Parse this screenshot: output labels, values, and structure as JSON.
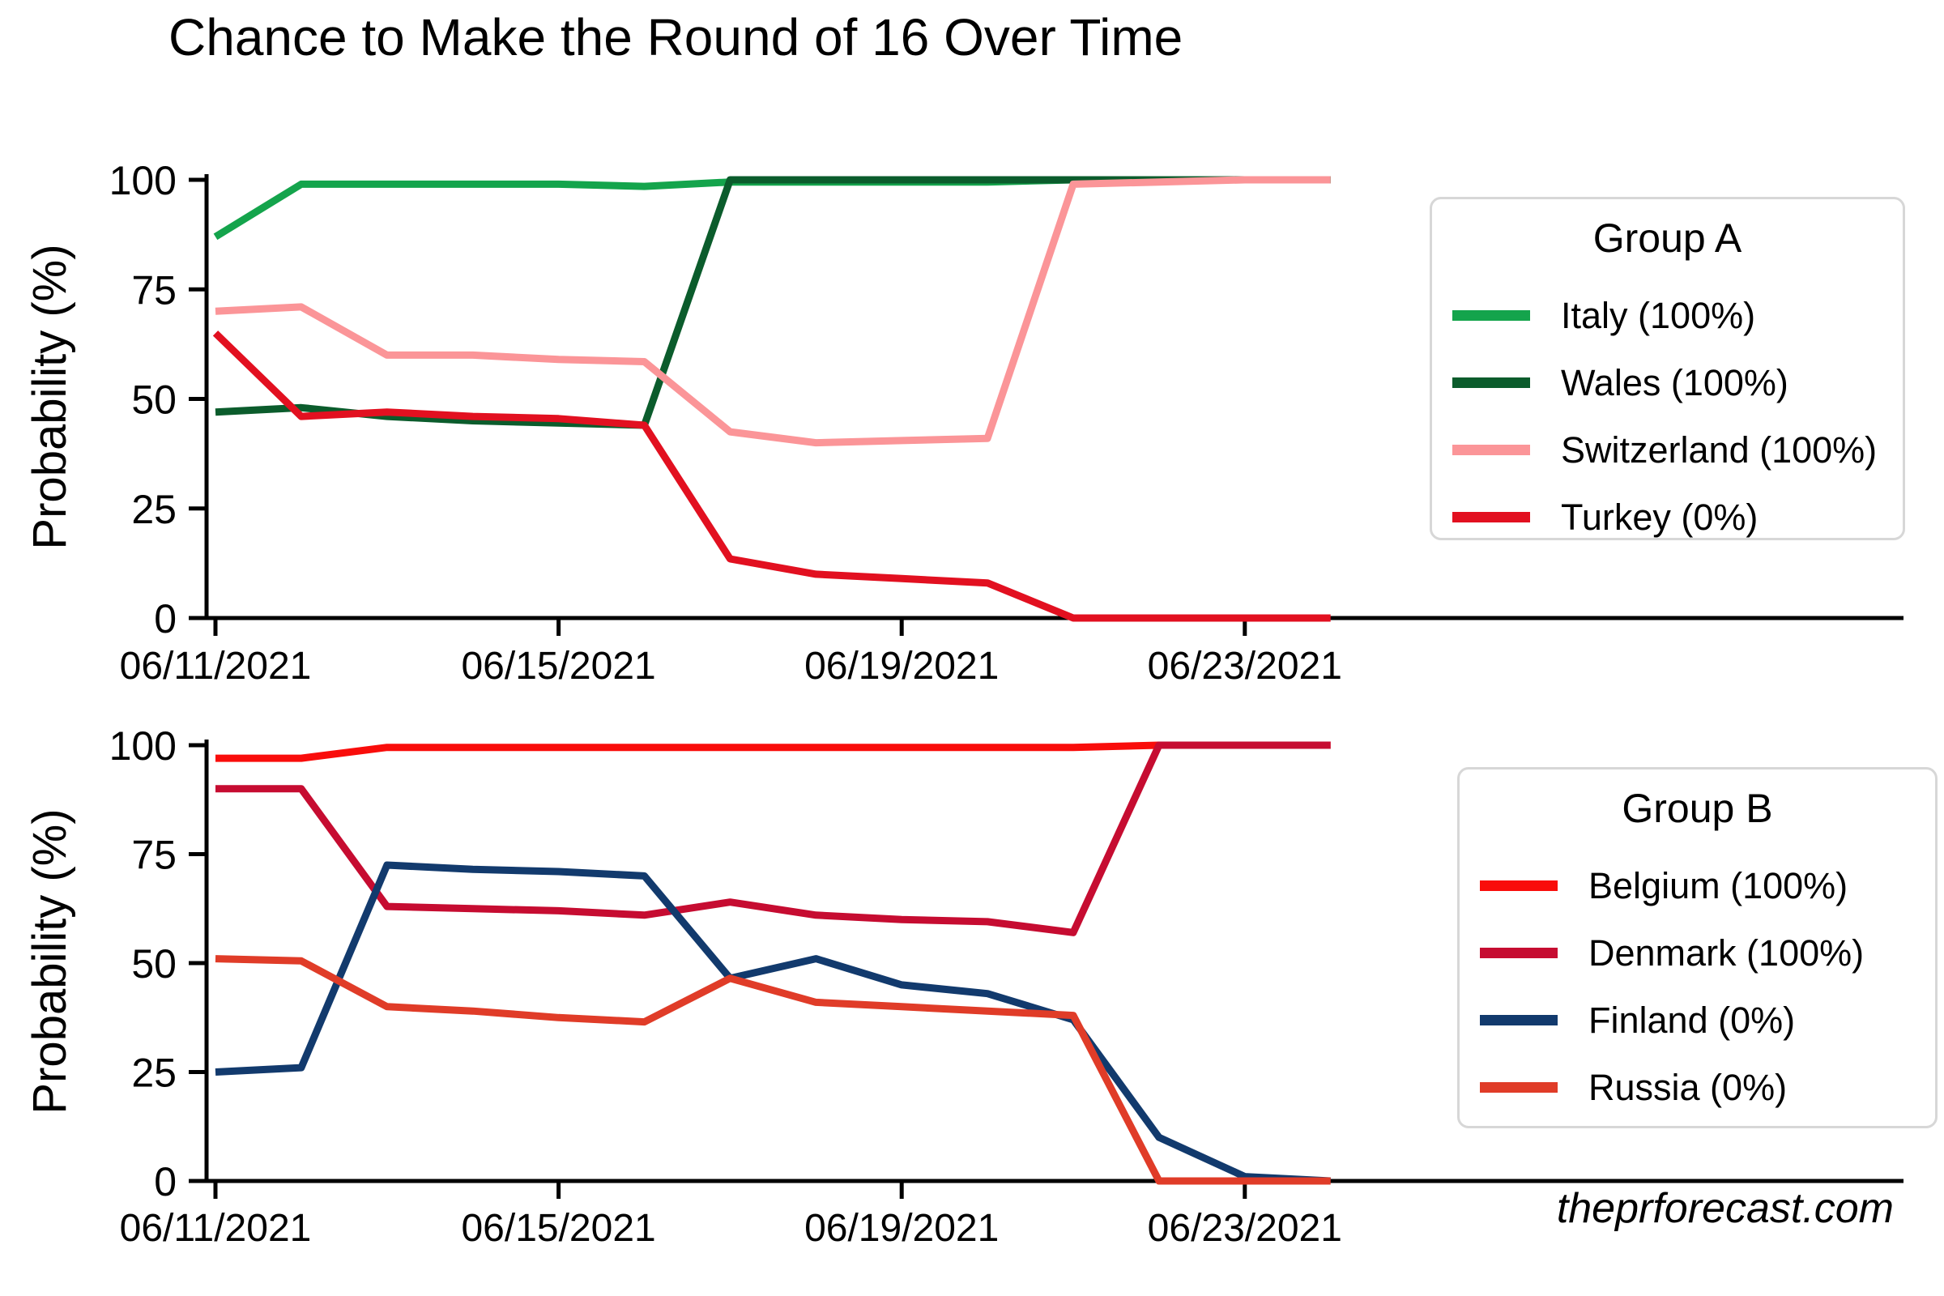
{
  "title": "Chance to Make the Round of 16 Over Time",
  "watermark": "theprforecast.com",
  "chart_data": [
    {
      "type": "line",
      "legend_title": "Group A",
      "ylabel": "Probability (%)",
      "ylim": [
        0,
        100
      ],
      "yticks": [
        0,
        25,
        50,
        75,
        100
      ],
      "grid": false,
      "legend_position": "upper right",
      "x": [
        "06/11/2021",
        "06/12/2021",
        "06/13/2021",
        "06/14/2021",
        "06/15/2021",
        "06/16/2021",
        "06/17/2021",
        "06/18/2021",
        "06/19/2021",
        "06/20/2021",
        "06/21/2021",
        "06/22/2021",
        "06/23/2021",
        "06/24/2021"
      ],
      "xtick_labels": [
        "06/11/2021",
        "06/15/2021",
        "06/19/2021",
        "06/23/2021"
      ],
      "xtick_indices": [
        0,
        4,
        8,
        12
      ],
      "series": [
        {
          "name": "Italy",
          "legend_label": "Italy (100%)",
          "color": "#14a44c",
          "values": [
            87,
            99,
            99,
            99,
            99,
            98.5,
            99.5,
            99.5,
            99.5,
            99.5,
            100,
            100,
            100,
            100
          ]
        },
        {
          "name": "Wales",
          "legend_label": "Wales (100%)",
          "color": "#0b5c2c",
          "values": [
            47,
            48,
            46,
            45,
            44.5,
            44,
            100,
            100,
            100,
            100,
            100,
            100,
            100,
            100
          ]
        },
        {
          "name": "Switzerland",
          "legend_label": "Switzerland (100%)",
          "color": "#fb9598",
          "values": [
            70,
            71,
            60,
            60,
            59,
            58.5,
            42.5,
            40,
            40.5,
            41,
            99,
            99.5,
            100,
            100
          ]
        },
        {
          "name": "Turkey",
          "legend_label": "Turkey (0%)",
          "color": "#e21020",
          "values": [
            65,
            46,
            47,
            46,
            45.5,
            44,
            13.5,
            10,
            9,
            8,
            0,
            0,
            0,
            0
          ]
        }
      ]
    },
    {
      "type": "line",
      "legend_title": "Group B",
      "ylabel": "Probability (%)",
      "ylim": [
        0,
        100
      ],
      "yticks": [
        0,
        25,
        50,
        75,
        100
      ],
      "grid": false,
      "legend_position": "right",
      "x": [
        "06/11/2021",
        "06/12/2021",
        "06/13/2021",
        "06/14/2021",
        "06/15/2021",
        "06/16/2021",
        "06/17/2021",
        "06/18/2021",
        "06/19/2021",
        "06/20/2021",
        "06/21/2021",
        "06/22/2021",
        "06/23/2021",
        "06/24/2021"
      ],
      "xtick_labels": [
        "06/11/2021",
        "06/15/2021",
        "06/19/2021",
        "06/23/2021"
      ],
      "xtick_indices": [
        0,
        4,
        8,
        12
      ],
      "series": [
        {
          "name": "Belgium",
          "legend_label": "Belgium (100%)",
          "color": "#f90d0b",
          "values": [
            97,
            97,
            99.5,
            99.5,
            99.5,
            99.5,
            99.5,
            99.5,
            99.5,
            99.5,
            99.5,
            100,
            100,
            100
          ]
        },
        {
          "name": "Denmark",
          "legend_label": "Denmark (100%)",
          "color": "#c60c31",
          "values": [
            90,
            90,
            63,
            62.5,
            62,
            61,
            64,
            61,
            60,
            59.5,
            57,
            100,
            100,
            100
          ]
        },
        {
          "name": "Finland",
          "legend_label": "Finland (0%)",
          "color": "#123a6d",
          "values": [
            25,
            26,
            72.5,
            71.5,
            71,
            70,
            46.5,
            51,
            45,
            43,
            37,
            10,
            1,
            0
          ]
        },
        {
          "name": "Russia",
          "legend_label": "Russia (0%)",
          "color": "#e03c28",
          "values": [
            51,
            50.5,
            40,
            39,
            37.5,
            36.5,
            46.5,
            41,
            40,
            39,
            38,
            0,
            0,
            0
          ]
        }
      ]
    }
  ]
}
